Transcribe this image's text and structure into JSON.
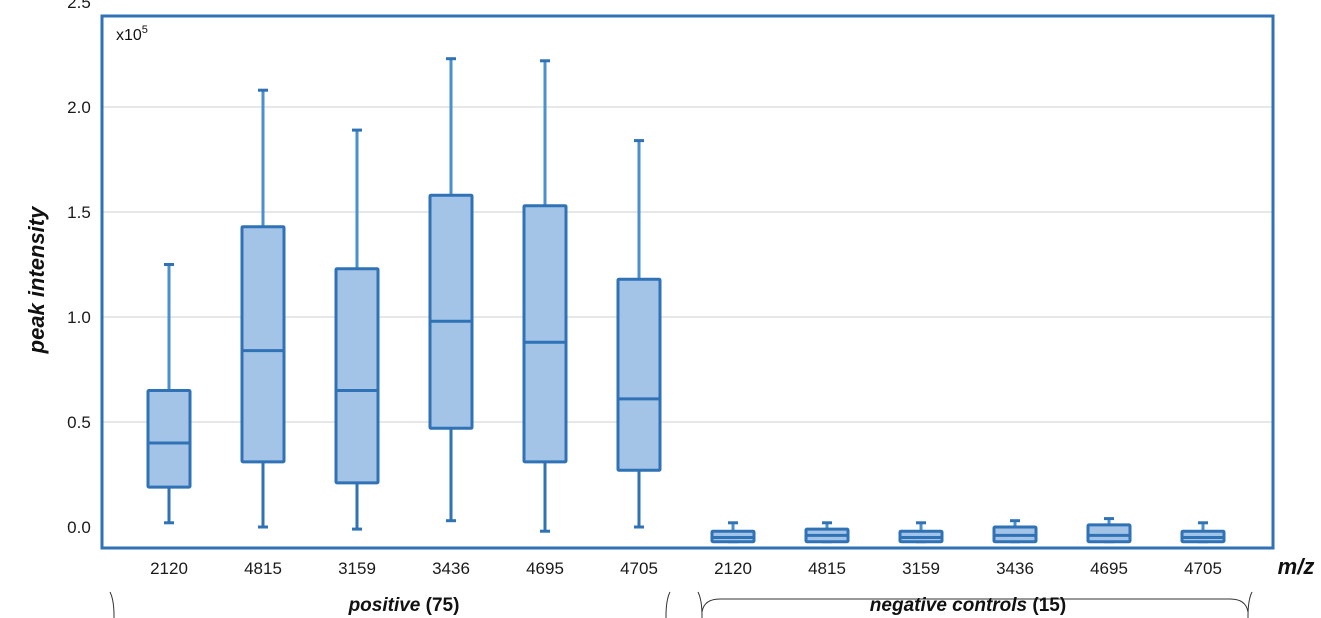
{
  "chart_data": {
    "type": "box",
    "ylabel": "peak intensity",
    "xlabel": "m/z",
    "y_multiplier": {
      "base": "x10",
      "exponent": "5"
    },
    "ylim": [
      -0.05,
      2.55
    ],
    "yticks": [
      "0.0",
      "0.5",
      "1.0",
      "1.5",
      "2.0",
      "2.5"
    ],
    "grid": true,
    "colors": {
      "box_fill": "#a3c4e6",
      "box_stroke": "#2f72b5",
      "whisker": "#4a8fd0",
      "frame": "#2f72b5",
      "grid": "#cfcfcf"
    },
    "groups": [
      {
        "name": "positive",
        "count": "(75)",
        "boxes": [
          {
            "category": "2120",
            "min": 0.02,
            "q1": 0.19,
            "median": 0.4,
            "q3": 0.65,
            "max": 1.25
          },
          {
            "category": "4815",
            "min": 0.0,
            "q1": 0.31,
            "median": 0.84,
            "q3": 1.43,
            "max": 2.08
          },
          {
            "category": "3159",
            "min": -0.01,
            "q1": 0.21,
            "median": 0.65,
            "q3": 1.23,
            "max": 1.89
          },
          {
            "category": "3436",
            "min": 0.03,
            "q1": 0.47,
            "median": 0.98,
            "q3": 1.58,
            "max": 2.23
          },
          {
            "category": "4695",
            "min": -0.02,
            "q1": 0.31,
            "median": 0.88,
            "q3": 1.53,
            "max": 2.22
          },
          {
            "category": "4705",
            "min": 0.0,
            "q1": 0.27,
            "median": 0.61,
            "q3": 1.18,
            "max": 1.84
          }
        ]
      },
      {
        "name": "negative controls",
        "count": "(15)",
        "boxes": [
          {
            "category": "2120",
            "min": -0.07,
            "q1": -0.07,
            "median": -0.05,
            "q3": -0.02,
            "max": 0.02
          },
          {
            "category": "4815",
            "min": -0.07,
            "q1": -0.07,
            "median": -0.04,
            "q3": -0.01,
            "max": 0.02
          },
          {
            "category": "3159",
            "min": -0.07,
            "q1": -0.07,
            "median": -0.05,
            "q3": -0.02,
            "max": 0.02
          },
          {
            "category": "3436",
            "min": -0.07,
            "q1": -0.07,
            "median": -0.04,
            "q3": 0.0,
            "max": 0.03
          },
          {
            "category": "4695",
            "min": -0.07,
            "q1": -0.07,
            "median": -0.04,
            "q3": 0.01,
            "max": 0.04
          },
          {
            "category": "4705",
            "min": -0.07,
            "q1": -0.07,
            "median": -0.05,
            "q3": -0.02,
            "max": 0.02
          }
        ]
      }
    ]
  }
}
